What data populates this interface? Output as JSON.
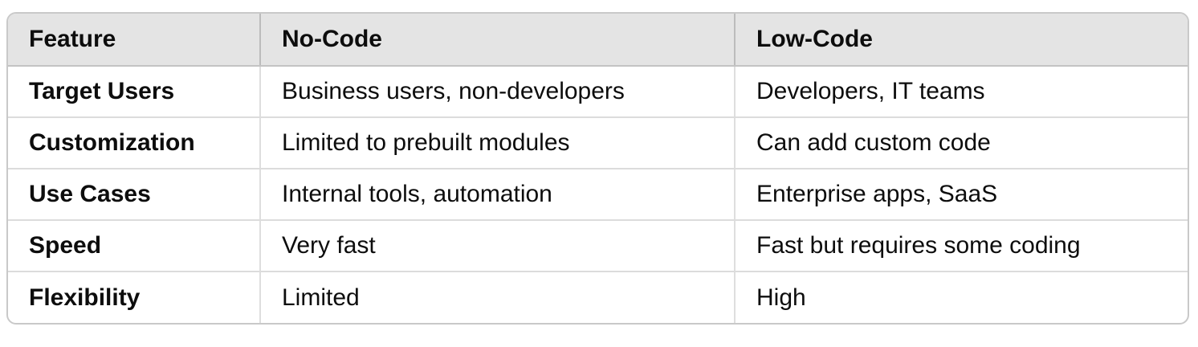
{
  "table": {
    "columns": [
      {
        "label": "Feature"
      },
      {
        "label": "No-Code"
      },
      {
        "label": "Low-Code"
      }
    ],
    "rows": [
      {
        "feature": "Target Users",
        "no_code": "Business users, non-developers",
        "low_code": "Developers, IT teams"
      },
      {
        "feature": "Customization",
        "no_code": "Limited to prebuilt modules",
        "low_code": "Can add custom code"
      },
      {
        "feature": "Use Cases",
        "no_code": "Internal tools, automation",
        "low_code": "Enterprise apps, SaaS"
      },
      {
        "feature": "Speed",
        "no_code": "Very fast",
        "low_code": "Fast but requires some coding"
      },
      {
        "feature": "Flexibility",
        "no_code": "Limited",
        "low_code": "High"
      }
    ],
    "colors": {
      "header_bg": "#e4e4e4",
      "outer_border": "#c9c9c9",
      "header_divider": "#bcbcbc",
      "header_bottom_border": "#c3c3c3",
      "row_divider": "#dcdcdc",
      "column_divider": "#dedede",
      "text": "#0d0d0d"
    }
  }
}
